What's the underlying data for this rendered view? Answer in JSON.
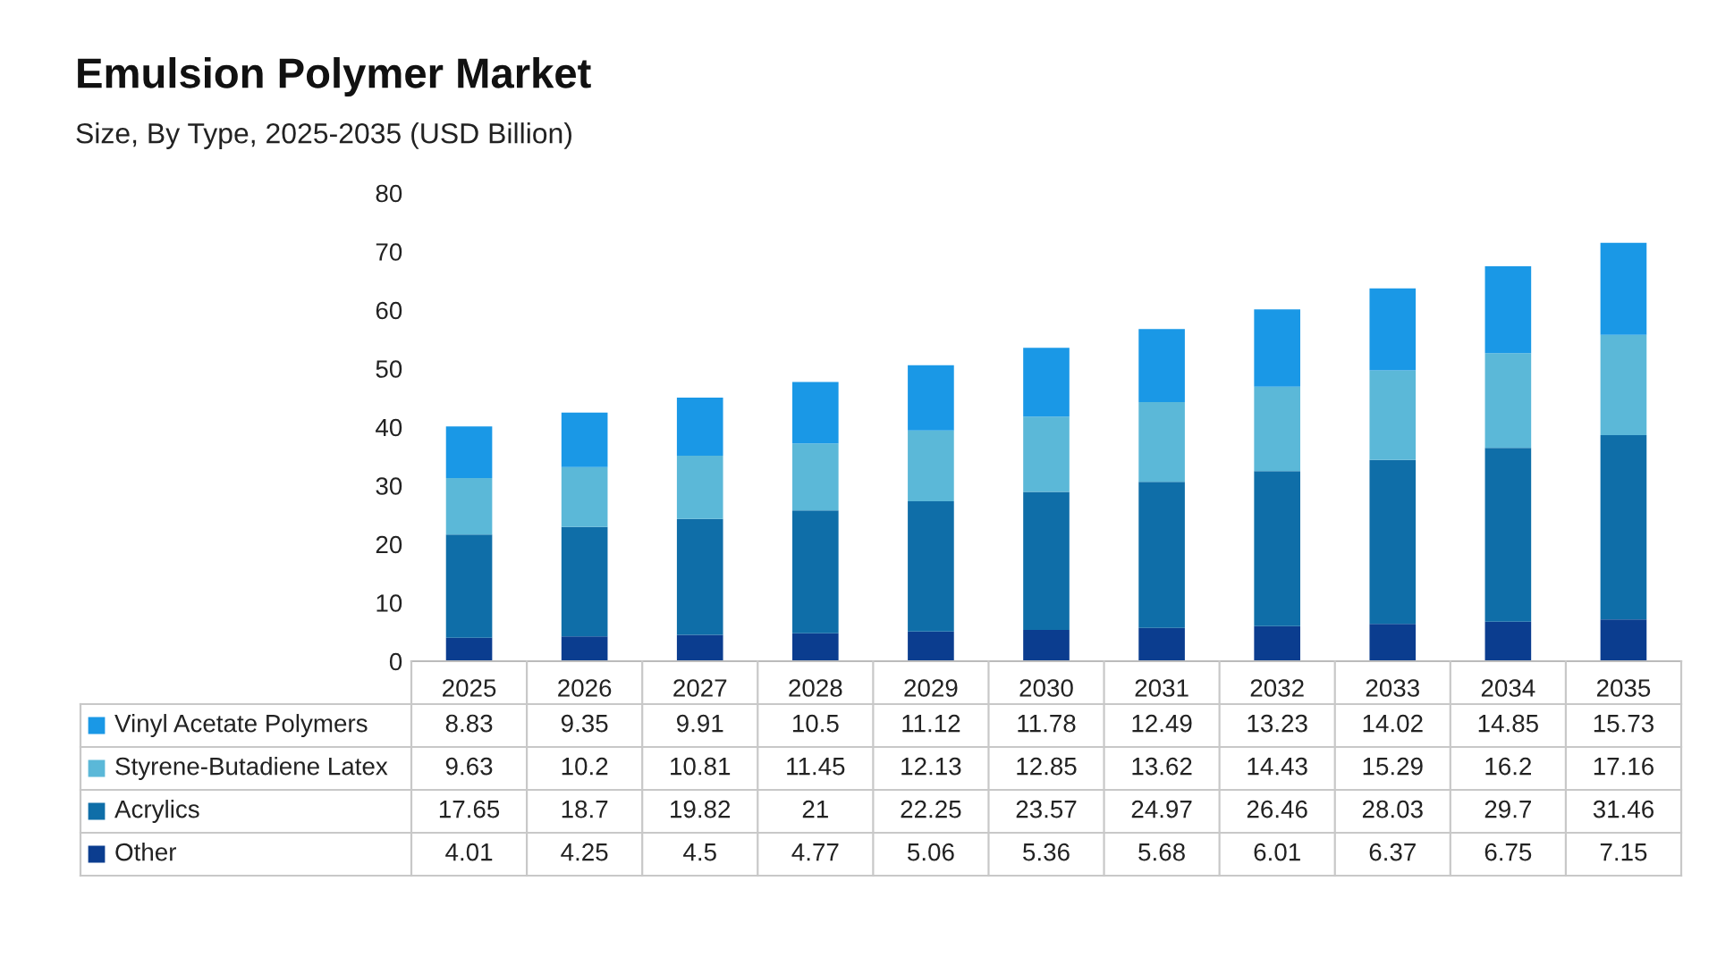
{
  "chart_data": {
    "type": "bar",
    "stacked": true,
    "title": "Emulsion Polymer Market",
    "subtitle": "Size, By Type, 2025-2035 (USD Billion)",
    "categories": [
      "2025",
      "2026",
      "2027",
      "2028",
      "2029",
      "2030",
      "2031",
      "2032",
      "2033",
      "2034",
      "2035"
    ],
    "series": [
      {
        "name": "Other",
        "color": "#0b3d8f",
        "values": [
          4.01,
          4.25,
          4.5,
          4.77,
          5.06,
          5.36,
          5.68,
          6.01,
          6.37,
          6.75,
          7.15
        ]
      },
      {
        "name": "Acrylics",
        "color": "#0f6ea8",
        "values": [
          17.65,
          18.7,
          19.82,
          21,
          22.25,
          23.57,
          24.97,
          26.46,
          28.03,
          29.7,
          31.46
        ]
      },
      {
        "name": "Styrene-Butadiene Latex",
        "color": "#5bb8d8",
        "values": [
          9.63,
          10.2,
          10.81,
          11.45,
          12.13,
          12.85,
          13.62,
          14.43,
          15.29,
          16.2,
          17.16
        ]
      },
      {
        "name": "Vinyl Acetate Polymers",
        "color": "#1a98e6",
        "values": [
          8.83,
          9.35,
          9.91,
          10.5,
          11.12,
          11.78,
          12.49,
          13.23,
          14.02,
          14.85,
          15.73
        ]
      }
    ],
    "ylim": [
      0,
      80
    ],
    "yticks": [
      0,
      10,
      20,
      30,
      40,
      50,
      60,
      70,
      80
    ],
    "grid": false,
    "data_labels": true,
    "legend": "bottom left"
  }
}
